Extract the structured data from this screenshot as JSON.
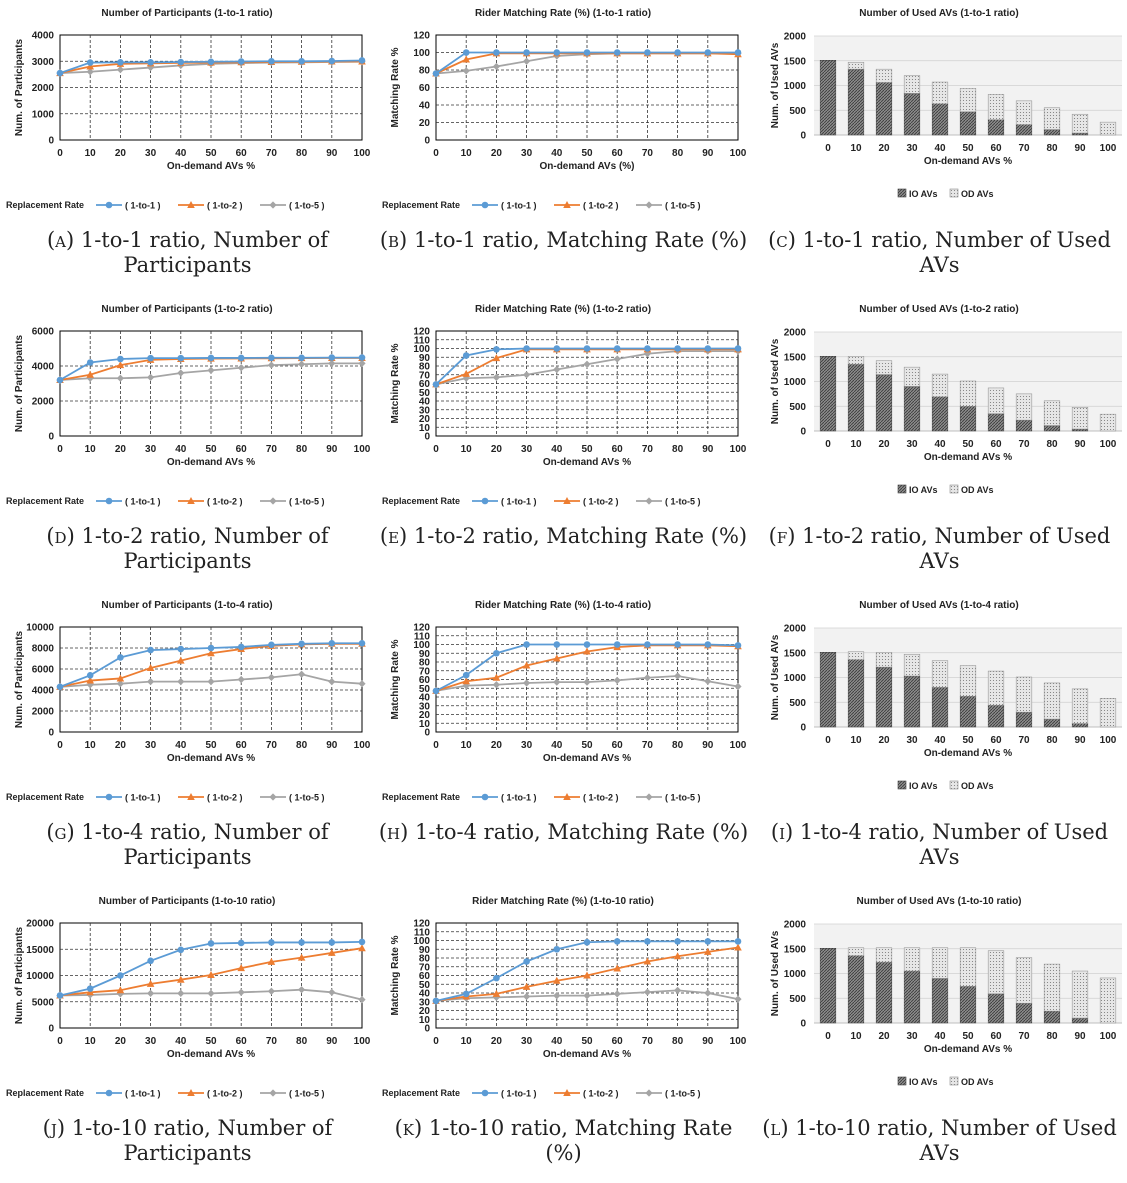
{
  "colors": {
    "s1": "#5B9BD5",
    "s2": "#ED7D31",
    "s3": "#A5A5A5",
    "io_fill": "#7f7f7f",
    "od_fill": "#d9d9d9",
    "plot_bg_bar": "#f2f2f2"
  },
  "panels": [
    {
      "id": "a",
      "letter": "(a)",
      "caption": "1-to-1 ratio, Number of Participants",
      "chart": {
        "type": "line",
        "title": "Number of Participants (1-to-1 ratio)",
        "xlabel": "On-demand AVs %",
        "ylabel": "Num. of Participants",
        "x": [
          "0",
          "10",
          "20",
          "30",
          "40",
          "50",
          "60",
          "70",
          "80",
          "90",
          "100"
        ],
        "ylim": [
          0,
          4000
        ],
        "yticks": [
          "0",
          "1000",
          "2000",
          "3000",
          "4000"
        ],
        "legend_title": "Replacement Rate",
        "series": [
          {
            "name": "( 1-to-1 )",
            "marker": "circle",
            "values": [
              2550,
              2950,
              2960,
              2960,
              2970,
              2980,
              2990,
              3000,
              3000,
              3010,
              3030
            ]
          },
          {
            "name": "( 1-to-2 )",
            "marker": "triangle",
            "values": [
              2550,
              2800,
              2900,
              2920,
              2940,
              2950,
              2960,
              2970,
              2980,
              2990,
              2990
            ]
          },
          {
            "name": "( 1-to-5 )",
            "marker": "diamond",
            "values": [
              2550,
              2600,
              2680,
              2760,
              2840,
              2900,
              2930,
              2950,
              2960,
              2970,
              2980
            ]
          }
        ]
      }
    },
    {
      "id": "b",
      "letter": "(b)",
      "caption": "1-to-1 ratio, Matching Rate (%)",
      "chart": {
        "type": "line",
        "title": "Rider Matching Rate (%) (1-to-1 ratio)",
        "xlabel": "On-demand AVs (%)",
        "ylabel": "Matching Rate %",
        "x": [
          "0",
          "10",
          "20",
          "30",
          "40",
          "50",
          "60",
          "70",
          "80",
          "90",
          "100"
        ],
        "ylim": [
          0,
          120
        ],
        "yticks": [
          "0",
          "20",
          "40",
          "60",
          "80",
          "100",
          "120"
        ],
        "legend_title": "Replacement Rate",
        "series": [
          {
            "name": "( 1-to-1 )",
            "marker": "circle",
            "values": [
              76,
              100,
              100,
              100,
              100,
              100,
              100,
              100,
              100,
              100,
              100
            ]
          },
          {
            "name": "( 1-to-2 )",
            "marker": "triangle",
            "values": [
              76,
              92,
              99,
              99,
              99,
              99,
              99,
              99,
              99,
              99,
              98
            ]
          },
          {
            "name": "( 1-to-5 )",
            "marker": "diamond",
            "values": [
              76,
              79,
              84,
              90,
              96,
              98,
              99,
              99,
              99,
              99,
              99
            ]
          }
        ]
      }
    },
    {
      "id": "c",
      "letter": "(c)",
      "caption": "1-to-1 ratio, Number of Used AVs",
      "chart": {
        "type": "bar",
        "stacked": true,
        "title": "Number of Used AVs (1-to-1 ratio)",
        "xlabel": "On-demand AVs %",
        "ylabel": "Num. of Used AVs",
        "categories": [
          "0",
          "10",
          "20",
          "30",
          "40",
          "50",
          "60",
          "70",
          "80",
          "90",
          "100"
        ],
        "ylim": [
          0,
          2000
        ],
        "yticks": [
          "0",
          "500",
          "1000",
          "1500",
          "2000"
        ],
        "series": [
          {
            "name": "IO AVs",
            "values": [
              1510,
              1330,
              1060,
              840,
              630,
              470,
              310,
              210,
              110,
              40,
              0
            ]
          },
          {
            "name": "OD AVs",
            "values": [
              0,
              140,
              270,
              360,
              440,
              470,
              510,
              480,
              440,
              380,
              260
            ]
          }
        ]
      }
    },
    {
      "id": "d",
      "letter": "(d)",
      "caption": "1-to-2 ratio, Number of Participants",
      "chart": {
        "type": "line",
        "title": "Number of Participants (1-to-2 ratio)",
        "xlabel": "On-demand AVs %",
        "ylabel": "Num. of Participants",
        "x": [
          "0",
          "10",
          "20",
          "30",
          "40",
          "50",
          "60",
          "70",
          "80",
          "90",
          "100"
        ],
        "ylim": [
          0,
          6000
        ],
        "yticks": [
          "0",
          "2000",
          "4000",
          "6000"
        ],
        "legend_title": "Replacement Rate",
        "series": [
          {
            "name": "( 1-to-1 )",
            "marker": "circle",
            "values": [
              3200,
              4200,
              4400,
              4450,
              4450,
              4460,
              4460,
              4470,
              4470,
              4480,
              4480
            ]
          },
          {
            "name": "( 1-to-2 )",
            "marker": "triangle",
            "values": [
              3200,
              3500,
              4050,
              4350,
              4400,
              4420,
              4430,
              4440,
              4450,
              4460,
              4460
            ]
          },
          {
            "name": "( 1-to-5 )",
            "marker": "diamond",
            "values": [
              3200,
              3300,
              3300,
              3350,
              3600,
              3750,
              3900,
              4050,
              4100,
              4150,
              4150
            ]
          }
        ]
      }
    },
    {
      "id": "e",
      "letter": "(e)",
      "caption": "1-to-2 ratio, Matching Rate (%)",
      "chart": {
        "type": "line",
        "title": "Rider Matching Rate (%) (1-to-2 ratio)",
        "xlabel": "On-demand AVs %",
        "ylabel": "Matching Rate %",
        "x": [
          "0",
          "10",
          "20",
          "30",
          "40",
          "50",
          "60",
          "70",
          "80",
          "90",
          "100"
        ],
        "ylim": [
          0,
          120
        ],
        "yticks": [
          "0",
          "10",
          "20",
          "30",
          "40",
          "50",
          "60",
          "70",
          "80",
          "90",
          "100",
          "110",
          "120"
        ],
        "legend_title": "Replacement Rate",
        "series": [
          {
            "name": "( 1-to-1 )",
            "marker": "circle",
            "values": [
              59,
              92,
              99,
              100,
              100,
              100,
              100,
              100,
              100,
              100,
              100
            ]
          },
          {
            "name": "( 1-to-2 )",
            "marker": "triangle",
            "values": [
              59,
              71,
              89,
              99,
              99,
              99,
              99,
              99,
              99,
              99,
              99
            ]
          },
          {
            "name": "( 1-to-5 )",
            "marker": "diamond",
            "values": [
              59,
              66,
              67,
              70,
              76,
              82,
              88,
              94,
              97,
              97,
              97
            ]
          }
        ]
      }
    },
    {
      "id": "f",
      "letter": "(f)",
      "caption": "1-to-2 ratio, Number of Used AVs",
      "chart": {
        "type": "bar",
        "stacked": true,
        "title": "Number of Used AVs (1-to-2 ratio)",
        "xlabel": "On-demand AVs %",
        "ylabel": "Num. of Used AVs",
        "categories": [
          "0",
          "10",
          "20",
          "30",
          "40",
          "50",
          "60",
          "70",
          "80",
          "90",
          "100"
        ],
        "ylim": [
          0,
          2000
        ],
        "yticks": [
          "0",
          "500",
          "1000",
          "1500",
          "2000"
        ],
        "series": [
          {
            "name": "IO AVs",
            "values": [
              1510,
              1350,
              1140,
              900,
              690,
              500,
              350,
              220,
              110,
              40,
              0
            ]
          },
          {
            "name": "OD AVs",
            "values": [
              0,
              160,
              280,
              390,
              460,
              510,
              520,
              530,
              500,
              440,
              340
            ]
          }
        ]
      }
    },
    {
      "id": "g",
      "letter": "(g)",
      "caption": "1-to-4 ratio, Number of Participants",
      "chart": {
        "type": "line",
        "title": "Number of Participants (1-to-4 ratio)",
        "xlabel": "On-demand AVs %",
        "ylabel": "Num. of Participants",
        "x": [
          "0",
          "10",
          "20",
          "30",
          "40",
          "50",
          "60",
          "70",
          "80",
          "90",
          "100"
        ],
        "ylim": [
          0,
          10000
        ],
        "yticks": [
          "0",
          "2000",
          "4000",
          "6000",
          "8000",
          "10000"
        ],
        "legend_title": "Replacement Rate",
        "series": [
          {
            "name": "( 1-to-1 )",
            "marker": "circle",
            "values": [
              4300,
              5400,
              7100,
              7800,
              7900,
              8000,
              8100,
              8300,
              8400,
              8450,
              8450
            ]
          },
          {
            "name": "( 1-to-2 )",
            "marker": "triangle",
            "values": [
              4300,
              4900,
              5100,
              6100,
              6800,
              7500,
              7900,
              8200,
              8350,
              8400,
              8400
            ]
          },
          {
            "name": "( 1-to-5 )",
            "marker": "diamond",
            "values": [
              4300,
              4500,
              4600,
              4800,
              4800,
              4800,
              5000,
              5200,
              5500,
              4800,
              4600
            ]
          }
        ]
      }
    },
    {
      "id": "h",
      "letter": "(h)",
      "caption": "1-to-4 ratio, Matching Rate (%)",
      "chart": {
        "type": "line",
        "title": "Rider Matching Rate (%) (1-to-4 ratio)",
        "xlabel": "On-demand AVs %",
        "ylabel": "Matching Rate %",
        "x": [
          "0",
          "10",
          "20",
          "30",
          "40",
          "50",
          "60",
          "70",
          "80",
          "90",
          "100"
        ],
        "ylim": [
          0,
          120
        ],
        "yticks": [
          "0",
          "10",
          "20",
          "30",
          "40",
          "50",
          "60",
          "70",
          "80",
          "90",
          "100",
          "110",
          "120"
        ],
        "legend_title": "Replacement Rate",
        "series": [
          {
            "name": "( 1-to-1 )",
            "marker": "circle",
            "values": [
              47,
              65,
              90,
              100,
              100,
              100,
              100,
              100,
              100,
              100,
              99
            ]
          },
          {
            "name": "( 1-to-2 )",
            "marker": "triangle",
            "values": [
              47,
              58,
              62,
              76,
              84,
              92,
              97,
              99,
              99,
              99,
              98
            ]
          },
          {
            "name": "( 1-to-5 )",
            "marker": "diamond",
            "values": [
              47,
              53,
              54,
              56,
              57,
              57,
              59,
              62,
              64,
              58,
              52
            ]
          }
        ]
      }
    },
    {
      "id": "i",
      "letter": "(i)",
      "caption": "1-to-4 ratio, Number of Used AVs",
      "chart": {
        "type": "bar",
        "stacked": true,
        "title": "Number of Used AVs (1-to-4 ratio)",
        "xlabel": "On-demand AVs %",
        "ylabel": "Num. of Used AVs",
        "categories": [
          "0",
          "10",
          "20",
          "30",
          "40",
          "50",
          "60",
          "70",
          "80",
          "90",
          "100"
        ],
        "ylim": [
          0,
          2000
        ],
        "yticks": [
          "0",
          "500",
          "1000",
          "1500",
          "2000"
        ],
        "series": [
          {
            "name": "IO AVs",
            "values": [
              1510,
              1360,
              1210,
              1030,
              800,
              620,
              440,
              300,
              160,
              70,
              0
            ]
          },
          {
            "name": "OD AVs",
            "values": [
              0,
              160,
              300,
              440,
              540,
              620,
              690,
              710,
              730,
              700,
              580
            ]
          }
        ]
      }
    },
    {
      "id": "j",
      "letter": "(j)",
      "caption": "1-to-10 ratio, Number of Participants",
      "chart": {
        "type": "line",
        "title": "Number of Participants (1-to-10 ratio)",
        "xlabel": "On-demand AVs %",
        "ylabel": "Num. of Participants",
        "x": [
          "0",
          "10",
          "20",
          "30",
          "40",
          "50",
          "60",
          "70",
          "80",
          "90",
          "100"
        ],
        "ylim": [
          0,
          20000
        ],
        "yticks": [
          "0",
          "5000",
          "10000",
          "15000",
          "20000"
        ],
        "legend_title": "Replacement Rate",
        "series": [
          {
            "name": "( 1-to-1 )",
            "marker": "circle",
            "values": [
              6200,
              7500,
              10000,
              12800,
              14900,
              16100,
              16200,
              16300,
              16300,
              16300,
              16400
            ]
          },
          {
            "name": "( 1-to-2 )",
            "marker": "triangle",
            "values": [
              6200,
              6800,
              7200,
              8400,
              9200,
              10100,
              11400,
              12600,
              13400,
              14300,
              15200
            ]
          },
          {
            "name": "( 1-to-5 )",
            "marker": "diamond",
            "values": [
              6200,
              6300,
              6500,
              6600,
              6600,
              6600,
              6800,
              7000,
              7300,
              6800,
              5400
            ]
          }
        ]
      }
    },
    {
      "id": "k",
      "letter": "(k)",
      "caption": "1-to-10 ratio, Matching Rate (%)",
      "chart": {
        "type": "line",
        "title": "Rider Matching Rate (%) (1-to-10 ratio)",
        "xlabel": "On-demand AVs %",
        "ylabel": "Matching Rate %",
        "x": [
          "0",
          "10",
          "20",
          "30",
          "40",
          "50",
          "60",
          "70",
          "80",
          "90",
          "100"
        ],
        "ylim": [
          0,
          120
        ],
        "yticks": [
          "0",
          "10",
          "20",
          "30",
          "40",
          "50",
          "60",
          "70",
          "80",
          "90",
          "100",
          "110",
          "120"
        ],
        "legend_title": "Replacement Rate",
        "series": [
          {
            "name": "( 1-to-1 )",
            "marker": "circle",
            "values": [
              31,
              39,
              57,
              76,
              90,
              98,
              99,
              99,
              99,
              99,
              99
            ]
          },
          {
            "name": "( 1-to-2 )",
            "marker": "triangle",
            "values": [
              31,
              36,
              39,
              47,
              54,
              60,
              68,
              76,
              82,
              87,
              92
            ]
          },
          {
            "name": "( 1-to-5 )",
            "marker": "diamond",
            "values": [
              31,
              34,
              35,
              36,
              37,
              37,
              39,
              41,
              43,
              40,
              33
            ]
          }
        ]
      }
    },
    {
      "id": "l",
      "letter": "(l)",
      "caption": "1-to-10 ratio, Number of Used AVs",
      "chart": {
        "type": "bar",
        "stacked": true,
        "title": "Number of Used AVs (1-to-10 ratio)",
        "xlabel": "On-demand AVs %",
        "ylabel": "Num. of Used AVs",
        "categories": [
          "0",
          "10",
          "20",
          "30",
          "40",
          "50",
          "60",
          "70",
          "80",
          "90",
          "100"
        ],
        "ylim": [
          0,
          2000
        ],
        "yticks": [
          "0",
          "500",
          "1000",
          "1500",
          "2000"
        ],
        "series": [
          {
            "name": "IO AVs",
            "values": [
              1510,
              1360,
              1230,
              1050,
              900,
              740,
              590,
              400,
              240,
              100,
              0
            ]
          },
          {
            "name": "OD AVs",
            "values": [
              0,
              160,
              290,
              470,
              620,
              780,
              870,
              920,
              950,
              950,
              910
            ]
          }
        ]
      }
    }
  ]
}
